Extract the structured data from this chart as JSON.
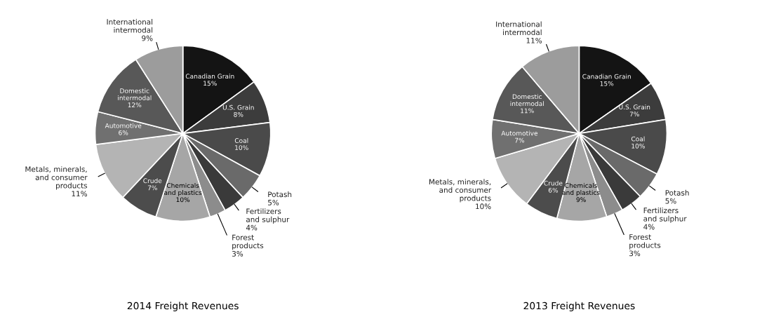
{
  "chart_data": [
    {
      "type": "pie",
      "title": "2014 Freight Revenues",
      "value_labels": [
        "15%",
        "8%",
        "10%",
        "5%",
        "4%",
        "3%",
        "10%",
        "7%",
        "11%",
        "6%",
        "12%",
        "9%"
      ],
      "categories": [
        "Canadian Grain",
        "U.S. Grain",
        "Coal",
        "Potash",
        "Fertilizers\nand sulphur",
        "Forest\nproducts",
        "Chemicals\nand plastics",
        "Crude",
        "Metals, minerals,\nand consumer\nproducts",
        "Automotive",
        "Domestic\nintermodal",
        "International\nintermodal"
      ],
      "values": [
        15,
        8,
        10,
        5,
        4,
        3,
        10,
        7,
        11,
        6,
        12,
        9
      ],
      "colors": [
        "#141414",
        "#3c3c3c",
        "#4a4a4a",
        "#6a6a6a",
        "#3a3a3a",
        "#8c8c8c",
        "#a6a6a6",
        "#4c4c4c",
        "#b4b4b4",
        "#707070",
        "#585858",
        "#9c9c9c"
      ]
    },
    {
      "type": "pie",
      "title": "2013 Freight Revenues",
      "value_labels": [
        "15%",
        "7%",
        "10%",
        "5%",
        "4%",
        "3%",
        "9%",
        "6%",
        "10%",
        "7%",
        "11%",
        "11%"
      ],
      "categories": [
        "Canadian Grain",
        "U.S. Grain",
        "Coal",
        "Potash",
        "Fertilizers\nand sulphur",
        "Forest\nproducts",
        "Chemicals\nand plastics",
        "Crude",
        "Metals, minerals,\nand consumer\nproducts",
        "Automotive",
        "Domestic\nintermodal",
        "International\nintermodal"
      ],
      "values": [
        15,
        7,
        10,
        5,
        4,
        3,
        9,
        6,
        10,
        7,
        11,
        11
      ],
      "colors": [
        "#141414",
        "#3c3c3c",
        "#4a4a4a",
        "#6a6a6a",
        "#3a3a3a",
        "#8c8c8c",
        "#a6a6a6",
        "#4c4c4c",
        "#b4b4b4",
        "#707070",
        "#585858",
        "#9c9c9c"
      ]
    }
  ]
}
